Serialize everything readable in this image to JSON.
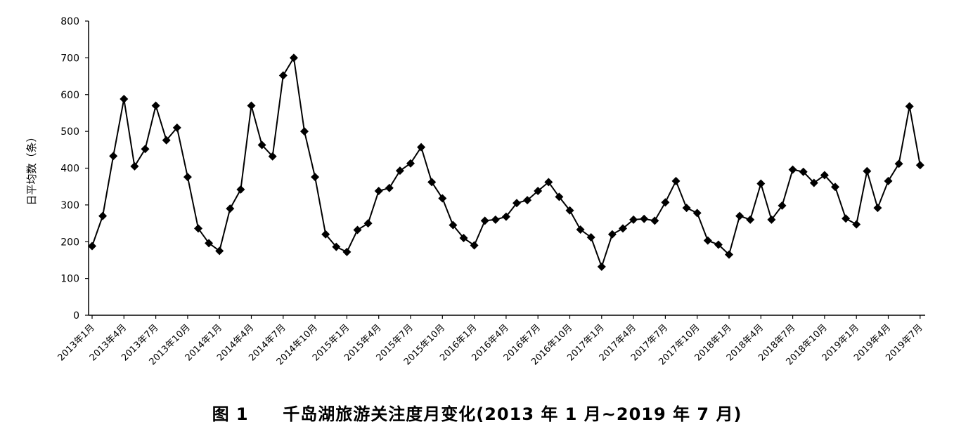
{
  "caption": {
    "figure_label": "图 1",
    "title": "千岛湖旅游关注度月变化(2013 年 1 月~2019 年 7 月)"
  },
  "chart_data": {
    "type": "line",
    "ylabel": "日平均数（条）",
    "ylim": [
      0,
      800
    ],
    "yticks": [
      0,
      100,
      200,
      300,
      400,
      500,
      600,
      700,
      800
    ],
    "x_tick_labels": [
      "2013年1月",
      "2013年4月",
      "2013年7月",
      "2013年10月",
      "2014年1月",
      "2014年4月",
      "2014年7月",
      "2014年10月",
      "2015年1月",
      "2015年4月",
      "2015年7月",
      "2015年10月",
      "2016年1月",
      "2016年4月",
      "2016年7月",
      "2016年10月",
      "2017年1月",
      "2017年4月",
      "2017年7月",
      "2017年10月",
      "2018年1月",
      "2018年4月",
      "2018年7月",
      "2018年10月",
      "2019年1月",
      "2019年4月",
      "2019年7月"
    ],
    "grid": false,
    "series": [
      {
        "marker": "diamond",
        "color": "#000000",
        "values": [
          188,
          270,
          433,
          588,
          405,
          452,
          570,
          476,
          510,
          376,
          236,
          196,
          175,
          290,
          342,
          570,
          463,
          432,
          652,
          700,
          500,
          376,
          220,
          186,
          172,
          232,
          250,
          338,
          346,
          393,
          413,
          457,
          362,
          318,
          245,
          210,
          190,
          257,
          260,
          268,
          305,
          313,
          338,
          362,
          322,
          285,
          233,
          212,
          132,
          220,
          236,
          260,
          262,
          257,
          307,
          365,
          292,
          278,
          203,
          192,
          165,
          270,
          260,
          358,
          260,
          298,
          396,
          390,
          360,
          381,
          349,
          263,
          247,
          392,
          292,
          365,
          412,
          568,
          408
        ]
      }
    ]
  }
}
